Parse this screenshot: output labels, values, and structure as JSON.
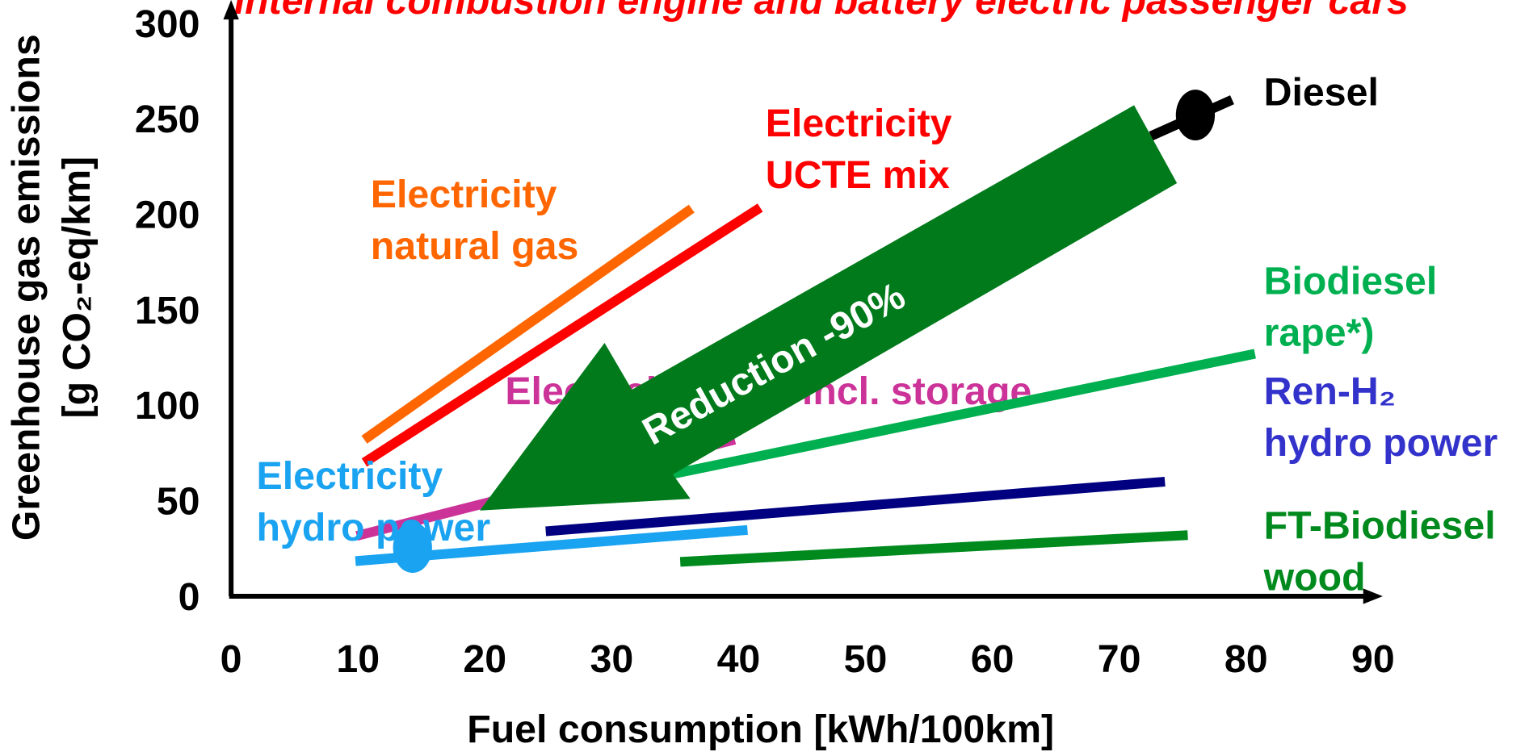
{
  "chart_data": {
    "type": "line",
    "title": "Internal combustion engine and battery electric passenger cars",
    "x_label": "Fuel consumption [kWh/100km]",
    "y_label_lines": [
      "Greenhouse gas emissions",
      "[g CO₂-eq/km]"
    ],
    "annotation": "Reduction -90%",
    "xlim": [
      0,
      90
    ],
    "xticks": [
      0,
      10,
      20,
      30,
      40,
      50,
      60,
      70,
      80,
      90
    ],
    "ylim": [
      0,
      300
    ],
    "yticks": [
      0,
      50,
      100,
      150,
      200,
      250,
      300
    ],
    "series": [
      {
        "name_lines": [
          "Diesel"
        ],
        "color": "#000000",
        "x": [
          72.5,
          78.9
        ],
        "y": [
          241,
          260
        ],
        "point_x": 76,
        "point_y": 252
      },
      {
        "name_lines": [
          "Electricity",
          "natural gas"
        ],
        "color": "#ff6600",
        "x": [
          10.5,
          36.3
        ],
        "y": [
          82,
          203
        ]
      },
      {
        "name_lines": [
          "Electricity",
          "UCTE mix"
        ],
        "color": "#ff0000",
        "x": [
          10.5,
          41.7
        ],
        "y": [
          70,
          203.5
        ]
      },
      {
        "name_lines": [
          "Electricity wind incl. storage"
        ],
        "color": "#cc3399",
        "x": [
          9.9,
          39.7
        ],
        "y": [
          31.6,
          82
        ]
      },
      {
        "name_lines": [
          "Biodiesel",
          "rape*)"
        ],
        "color": "#00b050",
        "x": [
          34.8,
          80.7
        ],
        "y": [
          64,
          127
        ]
      },
      {
        "name_lines": [
          "Ren-H₂",
          "hydro power"
        ],
        "color": "#3333cc",
        "x": [
          24.8,
          73.6
        ],
        "y": [
          34,
          60
        ],
        "line_color": "#000080"
      },
      {
        "name_lines": [
          "FT-Biodiesel",
          "wood"
        ],
        "color": "#008a1e",
        "x": [
          35.4,
          75.4
        ],
        "y": [
          18,
          32
        ]
      },
      {
        "name_lines": [
          "Electricity",
          "hydro power"
        ],
        "color": "#1aa3f0",
        "x": [
          9.8,
          40.7
        ],
        "y": [
          18.4,
          34.7
        ],
        "point_x": 14.3,
        "point_y": 25.5
      }
    ]
  }
}
